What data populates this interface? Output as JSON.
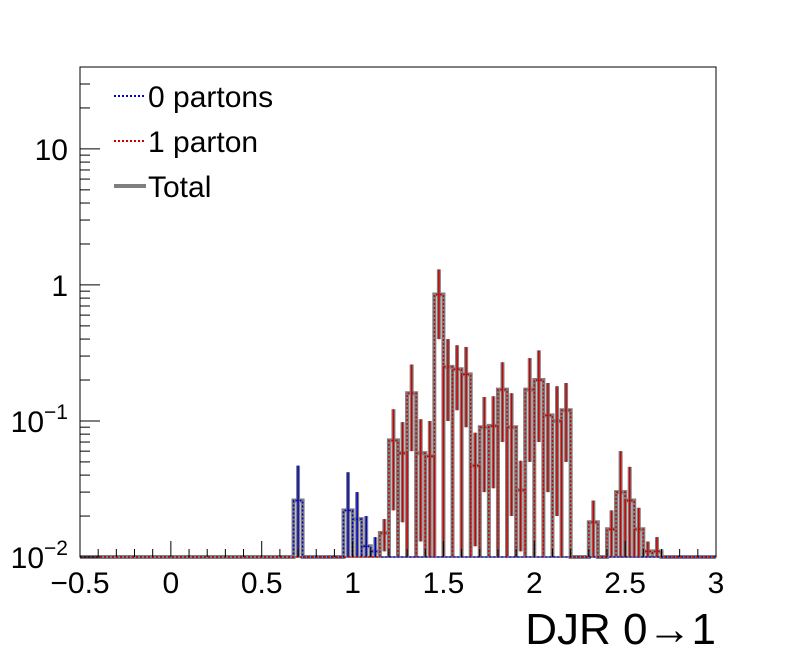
{
  "chart_data": {
    "type": "histogram",
    "title": "",
    "xlabel": "DJR 0→1",
    "ylabel": "",
    "xlim": [
      -0.5,
      3.0
    ],
    "ylim": [
      0.01,
      40
    ],
    "ylog": true,
    "grid": false,
    "legend_position": "top-left",
    "bin_width": 0.05,
    "x_ticks": [
      -0.5,
      0,
      0.5,
      1,
      1.5,
      2,
      2.5,
      3
    ],
    "x_tick_labels": [
      "−0.5",
      "0",
      "0.5",
      "1",
      "1.5",
      "2",
      "2.5",
      "3"
    ],
    "y_ticks": [
      {
        "value": 10,
        "base": "10",
        "exp": ""
      },
      {
        "value": 1,
        "base": "1",
        "exp": ""
      },
      {
        "value": 0.1,
        "base": "10",
        "exp": "−1"
      },
      {
        "value": 0.01,
        "base": "10",
        "exp": "−2"
      }
    ],
    "series": [
      {
        "name": "0 partons",
        "color": "#0000cc",
        "style": "dotted",
        "bins": [
          {
            "x": 0.7,
            "y": 0.026,
            "err": 0.021
          },
          {
            "x": 0.975,
            "y": 0.022,
            "err": 0.02
          },
          {
            "x": 1.025,
            "y": 0.019,
            "err": 0.011
          },
          {
            "x": 1.075,
            "y": 0.012,
            "err": 0.008
          },
          {
            "x": 1.125,
            "y": 0.011,
            "err": 0.003
          }
        ]
      },
      {
        "name": "1 parton",
        "color": "#cc0000",
        "style": "dotted",
        "bins": [
          {
            "x": 1.175,
            "y": 0.015,
            "err": 0.004
          },
          {
            "x": 1.225,
            "y": 0.072,
            "err": 0.05
          },
          {
            "x": 1.275,
            "y": 0.058,
            "err": 0.04
          },
          {
            "x": 1.325,
            "y": 0.16,
            "err": 0.1
          },
          {
            "x": 1.375,
            "y": 0.058,
            "err": 0.045
          },
          {
            "x": 1.425,
            "y": 0.055,
            "err": 0.045
          },
          {
            "x": 1.475,
            "y": 0.85,
            "err": 0.45
          },
          {
            "x": 1.525,
            "y": 0.25,
            "err": 0.15
          },
          {
            "x": 1.575,
            "y": 0.24,
            "err": 0.12
          },
          {
            "x": 1.625,
            "y": 0.22,
            "err": 0.13
          },
          {
            "x": 1.675,
            "y": 0.047,
            "err": 0.035
          },
          {
            "x": 1.725,
            "y": 0.09,
            "err": 0.06
          },
          {
            "x": 1.775,
            "y": 0.092,
            "err": 0.06
          },
          {
            "x": 1.825,
            "y": 0.17,
            "err": 0.1
          },
          {
            "x": 1.875,
            "y": 0.09,
            "err": 0.07
          },
          {
            "x": 1.925,
            "y": 0.031,
            "err": 0.02
          },
          {
            "x": 1.975,
            "y": 0.17,
            "err": 0.12
          },
          {
            "x": 2.025,
            "y": 0.2,
            "err": 0.13
          },
          {
            "x": 2.075,
            "y": 0.11,
            "err": 0.08
          },
          {
            "x": 2.125,
            "y": 0.1,
            "err": 0.08
          },
          {
            "x": 2.175,
            "y": 0.12,
            "err": 0.07
          },
          {
            "x": 2.325,
            "y": 0.018,
            "err": 0.008
          },
          {
            "x": 2.425,
            "y": 0.016,
            "err": 0.006
          },
          {
            "x": 2.475,
            "y": 0.03,
            "err": 0.03
          },
          {
            "x": 2.525,
            "y": 0.026,
            "err": 0.02
          },
          {
            "x": 2.575,
            "y": 0.016,
            "err": 0.007
          },
          {
            "x": 2.625,
            "y": 0.011,
            "err": 0.002
          },
          {
            "x": 2.675,
            "y": 0.011,
            "err": 0.003
          }
        ]
      },
      {
        "name": "Total",
        "color": "#7f7f7f",
        "style": "solid",
        "combined_from": [
          "0 partons",
          "1 parton"
        ]
      }
    ]
  }
}
